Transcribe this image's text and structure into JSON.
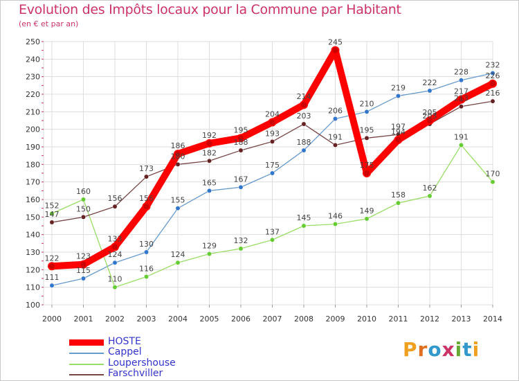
{
  "title": "Evolution des Impôts locaux pour la Commune par Habitant",
  "subtitle": "(en € et par an)",
  "logo": "Proxiti",
  "chart_data": {
    "type": "line",
    "title": "Evolution des Impôts locaux pour la Commune par Habitant",
    "ylabel": "(en € et par an)",
    "xlabel": "",
    "x": [
      "2000",
      "2001",
      "2002",
      "2003",
      "2004",
      "2005",
      "2006",
      "2007",
      "2008",
      "2009",
      "2010",
      "2011",
      "2012",
      "2013",
      "2014"
    ],
    "ylim": [
      100,
      250
    ],
    "yticks": [
      100,
      110,
      120,
      130,
      140,
      150,
      160,
      170,
      180,
      190,
      200,
      210,
      220,
      230,
      240,
      250
    ],
    "grid": true,
    "legend_position": "bottom-left",
    "series": [
      {
        "name": "HOSTE",
        "color": "#ff0000",
        "marker": "#cc0000",
        "values": [
          122,
          123,
          133,
          156,
          186,
          192,
          195,
          204,
          214,
          245,
          175,
          194,
          205,
          217,
          226
        ]
      },
      {
        "name": "Cappel",
        "color": "#6699cc",
        "marker": "#3377cc",
        "values": [
          111,
          115,
          124,
          130,
          155,
          165,
          167,
          175,
          188,
          206,
          210,
          219,
          222,
          228,
          232
        ]
      },
      {
        "name": "Loupershouse",
        "color": "#99dd66",
        "marker": "#66cc33",
        "values": [
          152,
          160,
          110,
          116,
          124,
          129,
          132,
          137,
          145,
          146,
          149,
          158,
          162,
          191,
          170
        ]
      },
      {
        "name": "Farschviller",
        "color": "#774444",
        "marker": "#662222",
        "values": [
          147,
          150,
          156,
          173,
          180,
          182,
          188,
          193,
          203,
          191,
          195,
          197,
          203,
          213,
          216
        ]
      }
    ]
  }
}
